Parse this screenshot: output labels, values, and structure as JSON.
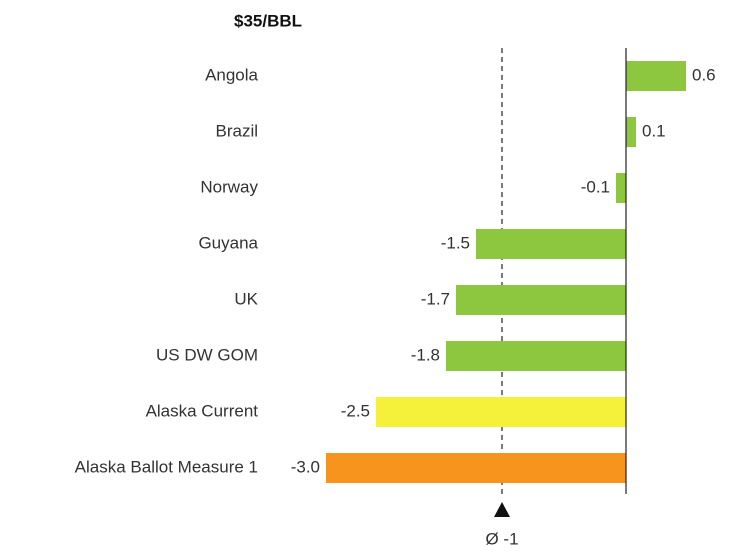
{
  "chart_data": {
    "type": "bar",
    "orientation": "horizontal",
    "title": "$35/BBL",
    "categories": [
      "Angola",
      "Brazil",
      "Norway",
      "Guyana",
      "UK",
      "US DW GOM",
      "Alaska Current",
      "Alaska Ballot Measure 1"
    ],
    "values": [
      0.6,
      0.1,
      -0.1,
      -1.5,
      -1.7,
      -1.8,
      -2.5,
      -3.0
    ],
    "value_labels": [
      "0.6",
      "0.1",
      "-0.1",
      "-1.5",
      "-1.7",
      "-1.8",
      "-2.5",
      "-3.0"
    ],
    "colors": [
      "#8dc63f",
      "#8dc63f",
      "#8dc63f",
      "#8dc63f",
      "#8dc63f",
      "#8dc63f",
      "#f5f03a",
      "#f7941d"
    ],
    "xlim": [
      -3.0,
      0.6
    ],
    "average": {
      "value": -1.24,
      "label": "Ø -1"
    }
  }
}
